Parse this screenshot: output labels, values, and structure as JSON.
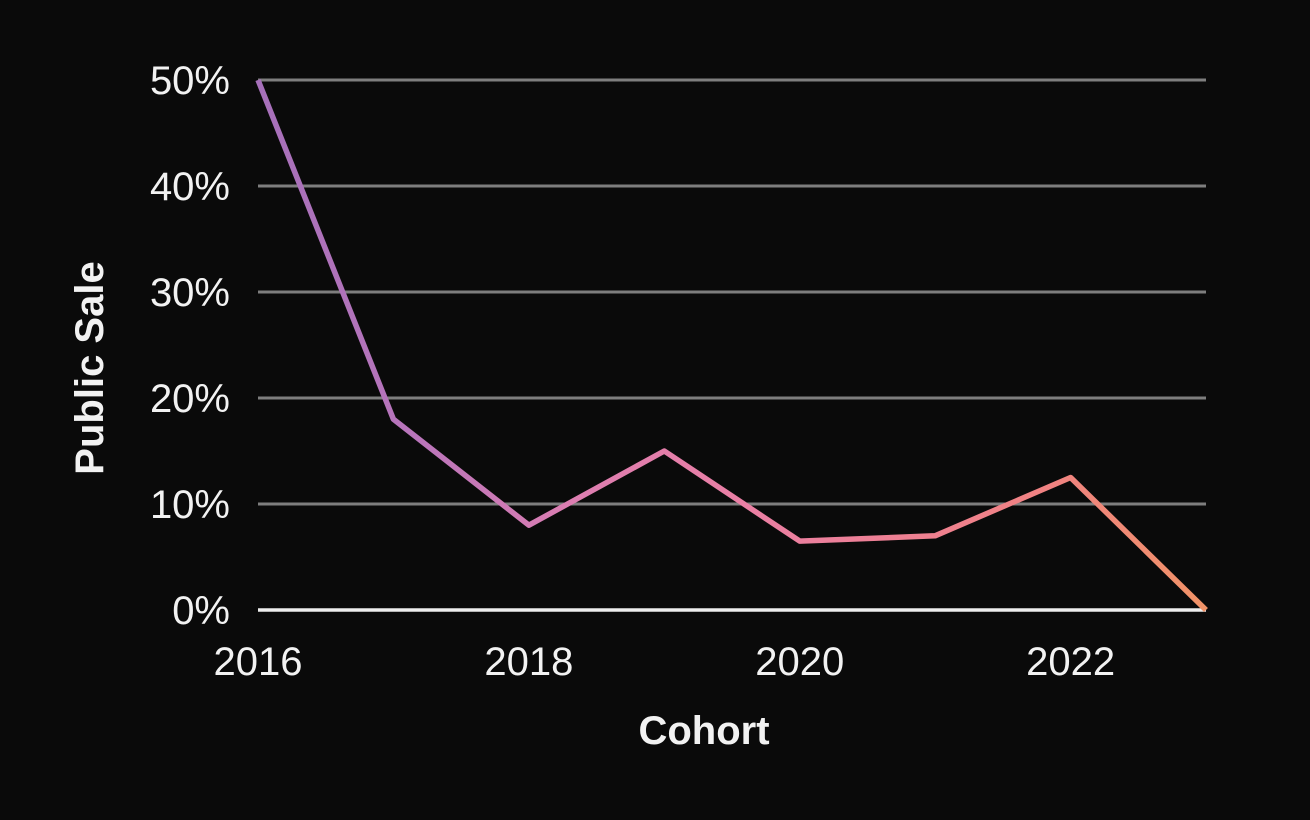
{
  "chart_data": {
    "type": "line",
    "x": [
      2016,
      2017,
      2018,
      2019,
      2020,
      2021,
      2022,
      2023
    ],
    "values": [
      50,
      18,
      8,
      15,
      6.5,
      7,
      12.5,
      0
    ],
    "xlabel": "Cohort",
    "ylabel": "Public Sale",
    "ylim": [
      0,
      50
    ],
    "yticks": [
      0,
      10,
      20,
      30,
      40,
      50
    ],
    "ytick_labels": [
      "0%",
      "10%",
      "20%",
      "30%",
      "40%",
      "50%"
    ],
    "xticks": [
      2016,
      2018,
      2020,
      2022
    ],
    "xtick_labels": [
      "2016",
      "2018",
      "2020",
      "2022"
    ],
    "grid": true,
    "legend": false,
    "colors": {
      "background": "#0a0a0a",
      "text": "#f2f2f2",
      "gridline": "#7e7e7e",
      "baseline_axis": "#eeeeee",
      "line_gradient": [
        "#a670ba",
        "#b975bb",
        "#dd7eb1",
        "#e97fa5",
        "#ee8094",
        "#f08282",
        "#f19367"
      ]
    }
  }
}
